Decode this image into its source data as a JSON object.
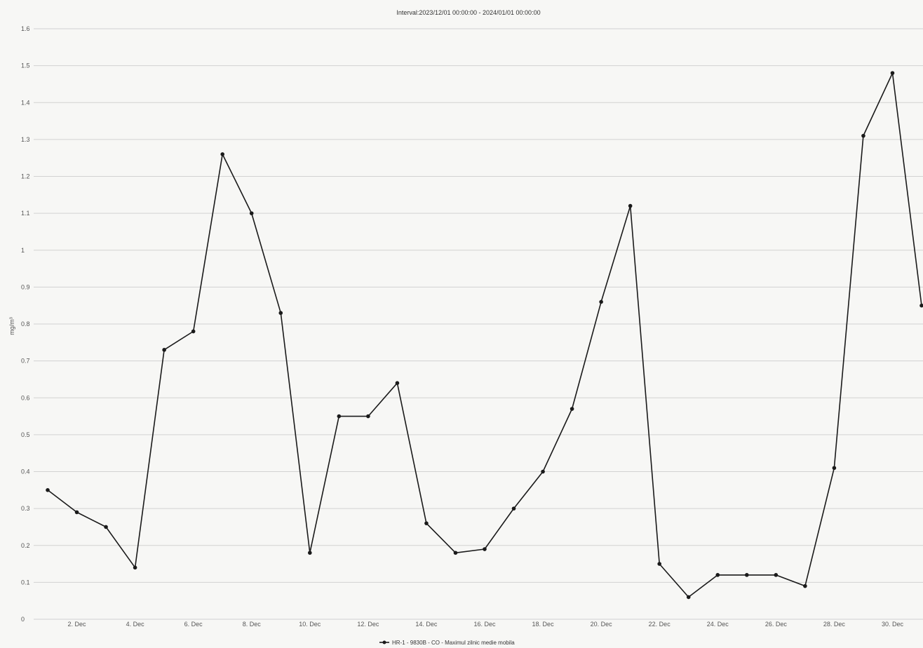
{
  "chart_data": {
    "type": "line",
    "title": "Interval:2023/12/01 00:00:00 - 2024/01/01 00:00:00",
    "ylabel": "mg/m³",
    "xlabel": "",
    "ylim": [
      0,
      1.6
    ],
    "yticks": [
      0,
      0.1,
      0.2,
      0.3,
      0.4,
      0.5,
      0.6,
      0.7,
      0.8,
      0.9,
      1,
      1.1,
      1.2,
      1.3,
      1.4,
      1.5,
      1.6
    ],
    "xticks": [
      {
        "day": 2,
        "label": "2. Dec"
      },
      {
        "day": 4,
        "label": "4. Dec"
      },
      {
        "day": 6,
        "label": "6. Dec"
      },
      {
        "day": 8,
        "label": "8. Dec"
      },
      {
        "day": 10,
        "label": "10. Dec"
      },
      {
        "day": 12,
        "label": "12. Dec"
      },
      {
        "day": 14,
        "label": "14. Dec"
      },
      {
        "day": 16,
        "label": "16. Dec"
      },
      {
        "day": 18,
        "label": "18. Dec"
      },
      {
        "day": 20,
        "label": "20. Dec"
      },
      {
        "day": 22,
        "label": "22. Dec"
      },
      {
        "day": 24,
        "label": "24. Dec"
      },
      {
        "day": 26,
        "label": "26. Dec"
      },
      {
        "day": 28,
        "label": "28. Dec"
      },
      {
        "day": 30,
        "label": "30. Dec"
      }
    ],
    "grid": true,
    "legend_position": "bottom-center",
    "series": [
      {
        "name": "HR-1 - 9830B - CO - Maximul zilnic medie mobila",
        "color": "#1a1a1a",
        "x": [
          1,
          2,
          3,
          4,
          5,
          6,
          7,
          8,
          9,
          10,
          11,
          12,
          13,
          14,
          15,
          16,
          17,
          18,
          19,
          20,
          21,
          22,
          23,
          24,
          25,
          26,
          27,
          28,
          29,
          30,
          31
        ],
        "values": [
          0.35,
          0.29,
          0.25,
          0.14,
          0.73,
          0.78,
          1.26,
          1.1,
          0.83,
          0.18,
          0.55,
          0.55,
          0.64,
          0.26,
          0.18,
          0.19,
          0.3,
          0.4,
          0.57,
          0.86,
          1.12,
          0.15,
          0.06,
          0.12,
          0.12,
          0.12,
          0.09,
          0.41,
          1.31,
          1.48,
          0.85
        ]
      }
    ]
  }
}
